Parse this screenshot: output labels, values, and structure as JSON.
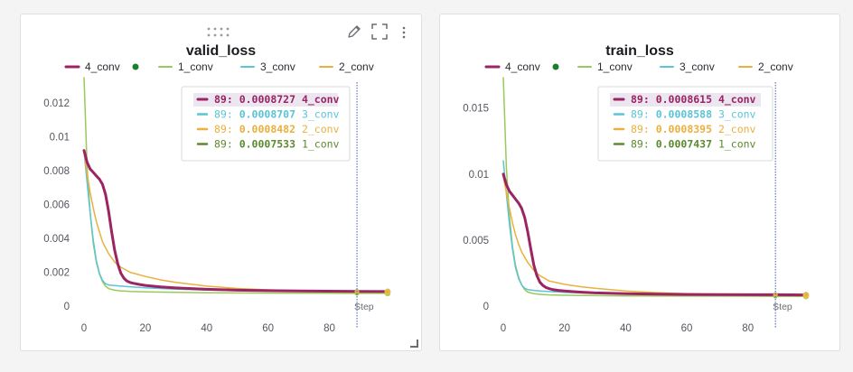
{
  "ui": {
    "panels": [
      {
        "title": "valid_loss",
        "x_axis_label": "Step"
      },
      {
        "title": "train_loss",
        "x_axis_label": "Step"
      }
    ],
    "icons": {
      "edit": "pencil-icon",
      "fullscreen": "fullscreen-icon",
      "menu": "more-vertical-icon",
      "drag": "drag-handle-icon"
    }
  },
  "series_colors": {
    "4_conv": "#9b2463",
    "1_conv": "#9bc959",
    "3_conv": "#5cc4d6",
    "2_conv": "#ebb03d"
  },
  "chart_data": [
    {
      "type": "line",
      "title": "valid_loss",
      "xlabel": "Step",
      "ylabel": "",
      "xlim": [
        0,
        99
      ],
      "ylim": [
        0,
        0.0135
      ],
      "xticks": [
        0,
        20,
        40,
        60,
        80
      ],
      "yticks": [
        0,
        0.002,
        0.004,
        0.006,
        0.008,
        0.01,
        0.012
      ],
      "ytick_labels": [
        "0",
        "0.002",
        "0.004",
        "0.006",
        "0.008",
        "0.01",
        "0.012"
      ],
      "legend": [
        "4_conv",
        "1_conv",
        "3_conv",
        "2_conv"
      ],
      "legend_marker": "4_conv",
      "hover_step": 89,
      "tooltip": [
        {
          "name": "4_conv",
          "step": "89",
          "value": "0.0008727",
          "color": "#9b2463",
          "highlight": true
        },
        {
          "name": "3_conv",
          "step": "89",
          "value": "0.0008707",
          "color": "#5cc4d6"
        },
        {
          "name": "2_conv",
          "step": "89",
          "value": "0.0008482",
          "color": "#ebb03d"
        },
        {
          "name": "1_conv",
          "step": "89",
          "value": "0.0007533",
          "color": "#5c8a2e"
        }
      ],
      "series": [
        {
          "name": "4_conv",
          "color": "#9b2463",
          "width": 3,
          "x": [
            0,
            1,
            2,
            3,
            4,
            5,
            6,
            7,
            8,
            9,
            10,
            11,
            12,
            13,
            14,
            15,
            16,
            18,
            20,
            25,
            30,
            40,
            50,
            60,
            70,
            80,
            89,
            99
          ],
          "y": [
            0.0092,
            0.0085,
            0.0081,
            0.0079,
            0.0077,
            0.0075,
            0.0072,
            0.0066,
            0.0056,
            0.0044,
            0.0033,
            0.0025,
            0.00195,
            0.00165,
            0.00148,
            0.0014,
            0.00135,
            0.00128,
            0.00122,
            0.00113,
            0.00107,
            0.00099,
            0.00094,
            0.00091,
            0.00089,
            0.00088,
            0.00087,
            0.00086
          ]
        },
        {
          "name": "1_conv",
          "color": "#9bc959",
          "width": 1.5,
          "x": [
            0,
            1,
            2,
            3,
            4,
            5,
            6,
            7,
            8,
            10,
            12,
            15,
            20,
            30,
            40,
            60,
            80,
            89,
            99
          ],
          "y": [
            0.0135,
            0.0082,
            0.0055,
            0.0037,
            0.0026,
            0.0019,
            0.00145,
            0.00118,
            0.00103,
            0.00094,
            0.0009,
            0.00087,
            0.00084,
            0.00081,
            0.00079,
            0.00077,
            0.00076,
            0.00075,
            0.00075
          ]
        },
        {
          "name": "3_conv",
          "color": "#5cc4d6",
          "width": 1.5,
          "x": [
            0,
            1,
            2,
            3,
            4,
            5,
            6,
            7,
            8,
            10,
            12,
            15,
            20,
            30,
            40,
            60,
            80,
            89,
            99
          ],
          "y": [
            0.0091,
            0.0073,
            0.0055,
            0.0039,
            0.0027,
            0.00195,
            0.00152,
            0.00132,
            0.00125,
            0.00121,
            0.00118,
            0.00114,
            0.00108,
            0.001,
            0.00095,
            0.0009,
            0.00088,
            0.00087,
            0.00086
          ]
        },
        {
          "name": "2_conv",
          "color": "#ebb03d",
          "width": 1.5,
          "x": [
            0,
            1,
            2,
            3,
            4,
            5,
            6,
            8,
            10,
            12,
            15,
            20,
            25,
            30,
            40,
            50,
            60,
            70,
            80,
            89,
            99
          ],
          "y": [
            0.0091,
            0.0078,
            0.0067,
            0.0058,
            0.005,
            0.0044,
            0.0038,
            0.0031,
            0.0026,
            0.0023,
            0.002,
            0.00175,
            0.00155,
            0.0014,
            0.00118,
            0.00104,
            0.00096,
            0.0009,
            0.00087,
            0.00085,
            0.00085
          ]
        }
      ]
    },
    {
      "type": "line",
      "title": "train_loss",
      "xlabel": "Step",
      "ylabel": "",
      "xlim": [
        0,
        99
      ],
      "ylim": [
        0,
        0.0173
      ],
      "xticks": [
        0,
        20,
        40,
        60,
        80
      ],
      "yticks": [
        0,
        0.005,
        0.01,
        0.015
      ],
      "ytick_labels": [
        "0",
        "0.005",
        "0.01",
        "0.015"
      ],
      "legend": [
        "4_conv",
        "1_conv",
        "3_conv",
        "2_conv"
      ],
      "legend_marker": "4_conv",
      "hover_step": 89,
      "tooltip": [
        {
          "name": "4_conv",
          "step": "89",
          "value": "0.0008615",
          "color": "#9b2463",
          "highlight": true
        },
        {
          "name": "3_conv",
          "step": "89",
          "value": "0.0008588",
          "color": "#5cc4d6"
        },
        {
          "name": "2_conv",
          "step": "89",
          "value": "0.0008395",
          "color": "#ebb03d"
        },
        {
          "name": "1_conv",
          "step": "89",
          "value": "0.0007437",
          "color": "#5c8a2e"
        }
      ],
      "series": [
        {
          "name": "4_conv",
          "color": "#9b2463",
          "width": 3,
          "x": [
            0,
            1,
            2,
            3,
            4,
            5,
            6,
            7,
            8,
            9,
            10,
            11,
            12,
            13,
            14,
            15,
            16,
            18,
            20,
            25,
            30,
            40,
            50,
            60,
            70,
            80,
            89,
            99
          ],
          "y": [
            0.01,
            0.0092,
            0.0087,
            0.0084,
            0.0081,
            0.0078,
            0.0074,
            0.0067,
            0.0056,
            0.0043,
            0.0031,
            0.0023,
            0.0018,
            0.00155,
            0.0014,
            0.00132,
            0.00126,
            0.00119,
            0.00114,
            0.00106,
            0.001,
            0.00094,
            0.0009,
            0.00088,
            0.00087,
            0.00086,
            0.00086,
            0.00085
          ]
        },
        {
          "name": "1_conv",
          "color": "#9bc959",
          "width": 1.5,
          "x": [
            0,
            1,
            2,
            3,
            4,
            5,
            6,
            7,
            8,
            10,
            12,
            15,
            20,
            30,
            40,
            60,
            80,
            89,
            99
          ],
          "y": [
            0.0173,
            0.0105,
            0.0068,
            0.0045,
            0.0031,
            0.0022,
            0.0016,
            0.00125,
            0.00106,
            0.00094,
            0.00089,
            0.00085,
            0.00082,
            0.00079,
            0.00077,
            0.00076,
            0.00075,
            0.00074,
            0.00074
          ]
        },
        {
          "name": "3_conv",
          "color": "#5cc4d6",
          "width": 1.5,
          "x": [
            0,
            1,
            2,
            3,
            4,
            5,
            6,
            7,
            8,
            10,
            12,
            15,
            20,
            30,
            40,
            60,
            80,
            89,
            99
          ],
          "y": [
            0.011,
            0.0085,
            0.0062,
            0.0043,
            0.0029,
            0.0021,
            0.0016,
            0.00135,
            0.00125,
            0.00119,
            0.00115,
            0.0011,
            0.00104,
            0.00097,
            0.00093,
            0.00089,
            0.00087,
            0.00086,
            0.00085
          ]
        },
        {
          "name": "2_conv",
          "color": "#ebb03d",
          "width": 1.5,
          "x": [
            0,
            1,
            2,
            3,
            4,
            5,
            6,
            8,
            10,
            12,
            15,
            20,
            25,
            30,
            40,
            50,
            60,
            70,
            80,
            89,
            99
          ],
          "y": [
            0.0098,
            0.0086,
            0.0074,
            0.0063,
            0.0054,
            0.0047,
            0.0041,
            0.0033,
            0.0027,
            0.0023,
            0.0019,
            0.00165,
            0.00148,
            0.00135,
            0.00115,
            0.00102,
            0.00094,
            0.00089,
            0.00086,
            0.00084,
            0.00084
          ]
        }
      ]
    }
  ]
}
